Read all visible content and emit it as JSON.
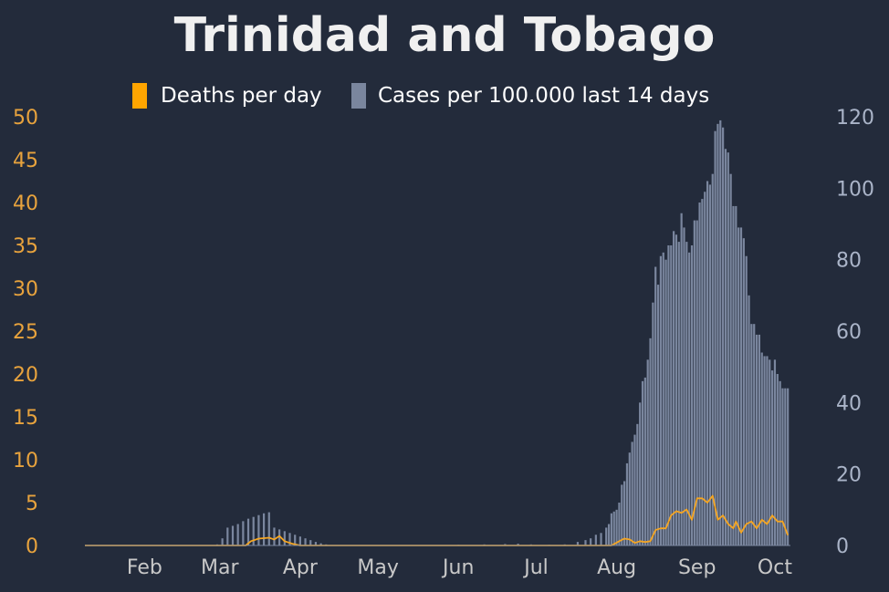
{
  "chart_data": {
    "type": "bar",
    "title": "Trinidad and Tobago",
    "colors": {
      "background": "#232b3b",
      "title": "#f0f0f0",
      "deaths": "#f5a623",
      "deaths_legend": "#ffa500",
      "cases": "#7a869e",
      "left_axis": "#e8a33d",
      "right_axis": "#aab4c8",
      "x_axis": "#c8c8c8",
      "legend_text": "#ffffff"
    },
    "legend": [
      {
        "label": "Deaths per day",
        "series": "deaths",
        "icon": "orange-square-icon"
      },
      {
        "label": "Cases per 100.000 last 14 days",
        "series": "cases",
        "icon": "slate-square-icon"
      }
    ],
    "legend_position": "top-center",
    "grid": false,
    "x_ticks": [
      "Feb",
      "Mar",
      "Apr",
      "May",
      "Jun",
      "Jul",
      "Aug",
      "Sep",
      "Oct"
    ],
    "y_left": {
      "ticks": [
        0,
        5,
        10,
        15,
        20,
        25,
        30,
        35,
        40,
        45,
        50
      ],
      "lim": [
        0,
        50
      ]
    },
    "y_right": {
      "ticks": [
        0,
        20,
        40,
        60,
        80,
        100,
        120
      ],
      "lim": [
        0,
        120
      ]
    },
    "x_range": {
      "start": "2020-01-23",
      "end": "2020-10-21"
    },
    "series": [
      {
        "name": "Cases per 100.000 last 14 days",
        "axis": "right",
        "kind": "bar",
        "points": [
          [
            "2020-03-12",
            0.1
          ],
          [
            "2020-03-14",
            0.3
          ],
          [
            "2020-03-16",
            2
          ],
          [
            "2020-03-18",
            5
          ],
          [
            "2020-03-20",
            5.5
          ],
          [
            "2020-03-22",
            6
          ],
          [
            "2020-03-24",
            6.8
          ],
          [
            "2020-03-26",
            7.5
          ],
          [
            "2020-03-28",
            8
          ],
          [
            "2020-03-30",
            8.5
          ],
          [
            "2020-04-01",
            9
          ],
          [
            "2020-04-03",
            9.3
          ],
          [
            "2020-04-05",
            5
          ],
          [
            "2020-04-07",
            4.5
          ],
          [
            "2020-04-09",
            4
          ],
          [
            "2020-04-11",
            3.5
          ],
          [
            "2020-04-13",
            3
          ],
          [
            "2020-04-15",
            2.5
          ],
          [
            "2020-04-17",
            2
          ],
          [
            "2020-04-19",
            1.5
          ],
          [
            "2020-04-21",
            1
          ],
          [
            "2020-04-23",
            0.6
          ],
          [
            "2020-04-25",
            0.3
          ],
          [
            "2020-04-28",
            0.1
          ],
          [
            "2020-06-15",
            0.2
          ],
          [
            "2020-06-25",
            0.3
          ],
          [
            "2020-07-03",
            0.4
          ],
          [
            "2020-07-08",
            0.5
          ],
          [
            "2020-07-13",
            0.3
          ],
          [
            "2020-07-20",
            0.2
          ],
          [
            "2020-07-26",
            0.3
          ],
          [
            "2020-07-31",
            1
          ],
          [
            "2020-08-03",
            1.5
          ],
          [
            "2020-08-05",
            2
          ],
          [
            "2020-08-07",
            3
          ],
          [
            "2020-08-09",
            3.5
          ],
          [
            "2020-08-11",
            5
          ],
          [
            "2020-08-12",
            6
          ],
          [
            "2020-08-13",
            9
          ],
          [
            "2020-08-14",
            9.5
          ],
          [
            "2020-08-15",
            10
          ],
          [
            "2020-08-16",
            12
          ],
          [
            "2020-08-17",
            17
          ],
          [
            "2020-08-18",
            18
          ],
          [
            "2020-08-19",
            23
          ],
          [
            "2020-08-20",
            26
          ],
          [
            "2020-08-21",
            29
          ],
          [
            "2020-08-22",
            31
          ],
          [
            "2020-08-23",
            34
          ],
          [
            "2020-08-24",
            40
          ],
          [
            "2020-08-25",
            46
          ],
          [
            "2020-08-26",
            47
          ],
          [
            "2020-08-27",
            52
          ],
          [
            "2020-08-28",
            58
          ],
          [
            "2020-08-29",
            68
          ],
          [
            "2020-08-30",
            78
          ],
          [
            "2020-08-31",
            73
          ],
          [
            "2020-09-01",
            81
          ],
          [
            "2020-09-02",
            82
          ],
          [
            "2020-09-03",
            80
          ],
          [
            "2020-09-04",
            84
          ],
          [
            "2020-09-05",
            84
          ],
          [
            "2020-09-06",
            88
          ],
          [
            "2020-09-07",
            87
          ],
          [
            "2020-09-08",
            85
          ],
          [
            "2020-09-09",
            93
          ],
          [
            "2020-09-10",
            89
          ],
          [
            "2020-09-11",
            85
          ],
          [
            "2020-09-12",
            82
          ],
          [
            "2020-09-13",
            84
          ],
          [
            "2020-09-14",
            91
          ],
          [
            "2020-09-15",
            91
          ],
          [
            "2020-09-16",
            96
          ],
          [
            "2020-09-17",
            97
          ],
          [
            "2020-09-18",
            99
          ],
          [
            "2020-09-19",
            102
          ],
          [
            "2020-09-20",
            101
          ],
          [
            "2020-09-21",
            104
          ],
          [
            "2020-09-22",
            116
          ],
          [
            "2020-09-23",
            118
          ],
          [
            "2020-09-24",
            119
          ],
          [
            "2020-09-25",
            117
          ],
          [
            "2020-09-26",
            111
          ],
          [
            "2020-09-27",
            110
          ],
          [
            "2020-09-28",
            104
          ],
          [
            "2020-09-29",
            95
          ],
          [
            "2020-09-30",
            95
          ],
          [
            "2020-10-01",
            89
          ],
          [
            "2020-10-02",
            89
          ],
          [
            "2020-10-03",
            86
          ],
          [
            "2020-10-04",
            81
          ],
          [
            "2020-10-05",
            70
          ],
          [
            "2020-10-06",
            62
          ],
          [
            "2020-10-07",
            62
          ],
          [
            "2020-10-08",
            59
          ],
          [
            "2020-10-09",
            59
          ],
          [
            "2020-10-10",
            54
          ],
          [
            "2020-10-11",
            53
          ],
          [
            "2020-10-12",
            53
          ],
          [
            "2020-10-13",
            52
          ],
          [
            "2020-10-14",
            49
          ],
          [
            "2020-10-15",
            52
          ],
          [
            "2020-10-16",
            48
          ],
          [
            "2020-10-17",
            46
          ],
          [
            "2020-10-18",
            44
          ],
          [
            "2020-10-19",
            44
          ],
          [
            "2020-10-20",
            44
          ]
        ]
      },
      {
        "name": "Deaths per day",
        "axis": "left",
        "kind": "line",
        "points": [
          [
            "2020-01-23",
            0
          ],
          [
            "2020-03-25",
            0
          ],
          [
            "2020-03-27",
            0.5
          ],
          [
            "2020-03-30",
            0.8
          ],
          [
            "2020-04-03",
            0.9
          ],
          [
            "2020-04-05",
            0.7
          ],
          [
            "2020-04-07",
            1.1
          ],
          [
            "2020-04-09",
            0.5
          ],
          [
            "2020-04-12",
            0.2
          ],
          [
            "2020-04-15",
            0
          ],
          [
            "2020-08-13",
            0
          ],
          [
            "2020-08-16",
            0.5
          ],
          [
            "2020-08-18",
            0.8
          ],
          [
            "2020-08-20",
            0.7
          ],
          [
            "2020-08-22",
            0.3
          ],
          [
            "2020-08-24",
            0.5
          ],
          [
            "2020-08-26",
            0.4
          ],
          [
            "2020-08-28",
            0.5
          ],
          [
            "2020-08-30",
            1.8
          ],
          [
            "2020-09-01",
            2
          ],
          [
            "2020-09-03",
            2
          ],
          [
            "2020-09-05",
            3.5
          ],
          [
            "2020-09-07",
            4
          ],
          [
            "2020-09-09",
            3.8
          ],
          [
            "2020-09-11",
            4.2
          ],
          [
            "2020-09-13",
            3
          ],
          [
            "2020-09-15",
            5.5
          ],
          [
            "2020-09-17",
            5.5
          ],
          [
            "2020-09-19",
            5
          ],
          [
            "2020-09-21",
            5.8
          ],
          [
            "2020-09-23",
            3
          ],
          [
            "2020-09-25",
            3.5
          ],
          [
            "2020-09-27",
            2.5
          ],
          [
            "2020-09-29",
            2
          ],
          [
            "2020-09-30",
            2.8
          ],
          [
            "2020-10-02",
            1.5
          ],
          [
            "2020-10-04",
            2.5
          ],
          [
            "2020-10-06",
            2.8
          ],
          [
            "2020-10-08",
            2
          ],
          [
            "2020-10-10",
            3
          ],
          [
            "2020-10-12",
            2.5
          ],
          [
            "2020-10-14",
            3.5
          ],
          [
            "2020-10-16",
            2.8
          ],
          [
            "2020-10-18",
            2.8
          ],
          [
            "2020-10-20",
            1.2
          ]
        ]
      }
    ]
  }
}
